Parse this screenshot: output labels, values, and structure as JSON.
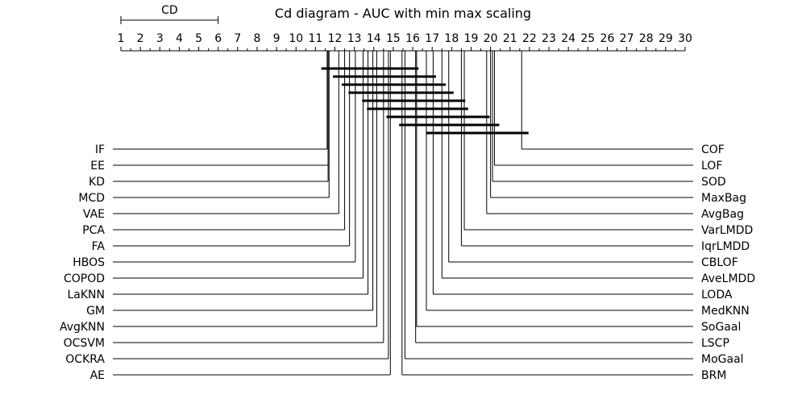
{
  "chart_data": {
    "type": "critical-difference",
    "title": "Cd diagram - AUC with min max scaling",
    "axis": {
      "min": 1,
      "max": 30,
      "ticks": [
        1,
        2,
        3,
        4,
        5,
        6,
        7,
        8,
        9,
        10,
        11,
        12,
        13,
        14,
        15,
        16,
        17,
        18,
        19,
        20,
        21,
        22,
        23,
        24,
        25,
        26,
        27,
        28,
        29,
        30
      ]
    },
    "cd": {
      "label": "CD",
      "from": 1,
      "to": 6
    },
    "left": [
      {
        "name": "IF",
        "rank": 11.6
      },
      {
        "name": "EE",
        "rank": 11.65
      },
      {
        "name": "KD",
        "rank": 11.65
      },
      {
        "name": "MCD",
        "rank": 11.7
      },
      {
        "name": "VAE",
        "rank": 12.2
      },
      {
        "name": "PCA",
        "rank": 12.5
      },
      {
        "name": "FA",
        "rank": 12.75
      },
      {
        "name": "HBOS",
        "rank": 13.05
      },
      {
        "name": "COPOD",
        "rank": 13.45
      },
      {
        "name": "LaKNN",
        "rank": 13.7
      },
      {
        "name": "GM",
        "rank": 13.95
      },
      {
        "name": "AvgKNN",
        "rank": 14.15
      },
      {
        "name": "OCSVM",
        "rank": 14.5
      },
      {
        "name": "OCKRA",
        "rank": 14.75
      },
      {
        "name": "AE",
        "rank": 14.85
      }
    ],
    "right": [
      {
        "name": "COF",
        "rank": 21.6
      },
      {
        "name": "LOF",
        "rank": 20.2
      },
      {
        "name": "SOD",
        "rank": 20.1
      },
      {
        "name": "MaxBag",
        "rank": 20.0
      },
      {
        "name": "AvgBag",
        "rank": 19.8
      },
      {
        "name": "VarLMDD",
        "rank": 18.65
      },
      {
        "name": "IqrLMDD",
        "rank": 18.5
      },
      {
        "name": "CBLOF",
        "rank": 17.85
      },
      {
        "name": "AveLMDD",
        "rank": 17.5
      },
      {
        "name": "LODA",
        "rank": 17.05
      },
      {
        "name": "MedKNN",
        "rank": 16.7
      },
      {
        "name": "SoGaal",
        "rank": 16.2
      },
      {
        "name": "LSCP",
        "rank": 16.15
      },
      {
        "name": "MoGaal",
        "rank": 15.6
      },
      {
        "name": "BRM",
        "rank": 15.45
      }
    ],
    "cliques": [
      {
        "from": 11.3,
        "to": 16.3
      },
      {
        "from": 11.9,
        "to": 17.2
      },
      {
        "from": 12.35,
        "to": 17.7
      },
      {
        "from": 12.7,
        "to": 18.1
      },
      {
        "from": 13.4,
        "to": 18.7
      },
      {
        "from": 13.65,
        "to": 18.85
      },
      {
        "from": 14.65,
        "to": 19.95
      },
      {
        "from": 15.3,
        "to": 20.45
      },
      {
        "from": 16.7,
        "to": 21.95
      }
    ]
  }
}
